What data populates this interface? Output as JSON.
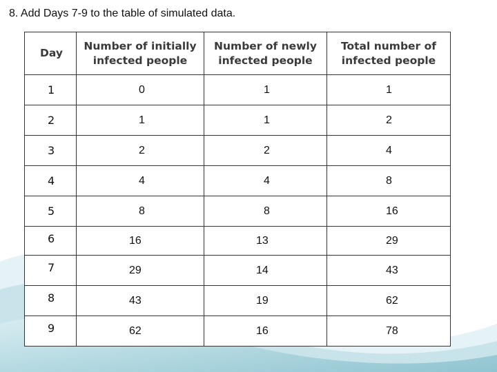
{
  "instruction": "8. Add Days 7-9 to the table of simulated data.",
  "table": {
    "headers": {
      "day": "Day",
      "initially": "Number of initially infected people",
      "newly": "Number of newly infected people",
      "total": "Total number of infected people"
    },
    "rows": [
      {
        "day": "1",
        "initially": "0",
        "newly": "1",
        "total": "1"
      },
      {
        "day": "2",
        "initially": "1",
        "newly": "1",
        "total": "2"
      },
      {
        "day": "3",
        "initially": "2",
        "newly": "2",
        "total": "4"
      },
      {
        "day": "4",
        "initially": "4",
        "newly": "4",
        "total": "8"
      },
      {
        "day": "5",
        "initially": "8",
        "newly": "8",
        "total": "16"
      },
      {
        "day": "6",
        "initially": "16",
        "newly": "13",
        "total": "29"
      },
      {
        "day": "7",
        "initially": "29",
        "newly": "14",
        "total": "43"
      },
      {
        "day": "8",
        "initially": "43",
        "newly": "19",
        "total": "62"
      },
      {
        "day": "9",
        "initially": "62",
        "newly": "16",
        "total": "78"
      }
    ]
  },
  "colors": {
    "wave_light": "#e3f1f4",
    "wave_mid": "#bfdfe6",
    "wave_dark": "#8fc4d0"
  }
}
